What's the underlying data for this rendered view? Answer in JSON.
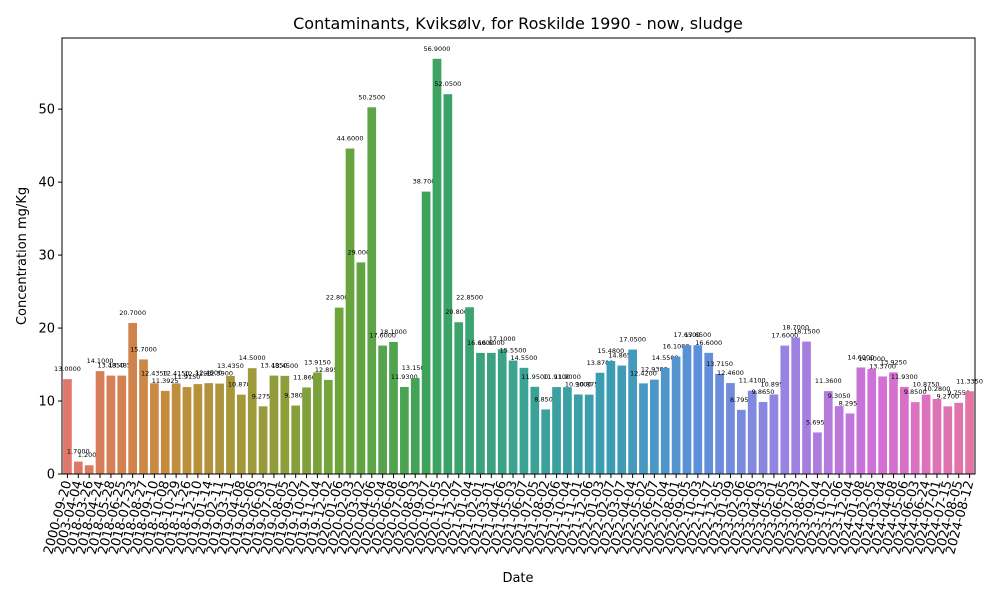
{
  "chart_data": {
    "type": "bar",
    "title": "Contaminants, Kviksølv, for Roskilde 1990 - now, sludge",
    "xlabel": "Date",
    "ylabel": "Concentration mg/Kg",
    "categories": [
      "2000-09-20",
      "2003-04-04",
      "2018-03-26",
      "2018-04-24",
      "2018-05-28",
      "2018-06-25",
      "2018-07-23",
      "2018-08-27",
      "2018-09-10",
      "2018-10-08",
      "2018-10-29",
      "2018-11-26",
      "2018-12-10",
      "2019-01-14",
      "2019-02-11",
      "2019-03-11",
      "2019-04-08",
      "2019-05-06",
      "2019-06-03",
      "2019-07-01",
      "2019-08-05",
      "2019-09-02",
      "2019-10-07",
      "2019-11-04",
      "2019-12-02",
      "2020-01-06",
      "2020-02-03",
      "2020-03-02",
      "2020-04-06",
      "2020-05-04",
      "2020-06-08",
      "2020-07-06",
      "2020-08-03",
      "2020-09-07",
      "2020-10-05",
      "2020-11-02",
      "2020-12-07",
      "2021-01-04",
      "2021-02-01",
      "2021-03-01",
      "2021-04-06",
      "2021-05-03",
      "2021-06-07",
      "2021-07-05",
      "2021-08-02",
      "2021-09-06",
      "2021-10-04",
      "2021-11-01",
      "2021-12-06",
      "2022-01-03",
      "2022-02-07",
      "2022-03-07",
      "2022-04-04",
      "2022-05-02",
      "2022-06-07",
      "2022-07-04",
      "2022-08-01",
      "2022-09-05",
      "2022-10-03",
      "2022-11-07",
      "2022-12-05",
      "2023-01-09",
      "2023-02-06",
      "2023-03-06",
      "2023-04-03",
      "2023-05-01",
      "2023-06-05",
      "2023-07-03",
      "2023-08-07",
      "2023-09-04",
      "2023-10-02",
      "2023-11-06",
      "2023-12-04",
      "2024-01-08",
      "2024-02-05",
      "2024-03-04",
      "2024-04-08",
      "2024-05-06",
      "2024-06-03",
      "2024-06-24",
      "2024-07-01",
      "2024-07-15",
      "2024-08-05",
      "2024-08-12"
    ],
    "values": [
      13.0,
      1.7,
      1.2,
      14.1,
      13.485,
      13.485,
      20.7,
      15.7,
      12.435,
      11.3925,
      12.415,
      11.915,
      12.315,
      12.45,
      12.39,
      13.435,
      10.87,
      14.5,
      9.275,
      13.485,
      13.45,
      9.38,
      11.86,
      13.915,
      12.895,
      22.8,
      44.6,
      29.0,
      50.25,
      17.6,
      18.1,
      11.93,
      13.15,
      38.7,
      56.9,
      52.05,
      20.8,
      22.85,
      16.6,
      16.6,
      17.1,
      15.55,
      14.55,
      11.95,
      8.85,
      11.91,
      11.9,
      10.9,
      10.875,
      13.87,
      15.48,
      14.865,
      17.05,
      12.42,
      12.93,
      14.55,
      16.1,
      17.65,
      17.65,
      16.6,
      13.715,
      12.46,
      8.795,
      11.41,
      9.865,
      10.895,
      17.6,
      18.7,
      18.15,
      5.695,
      11.36,
      9.305,
      8.295,
      14.6,
      14.4,
      13.37,
      13.925,
      11.93,
      9.85,
      10.875,
      10.28,
      9.27,
      9.755,
      11.335
    ],
    "value_labels": [
      "13.0000",
      "1.7000",
      "1.2000",
      "14.1000",
      "13.4850",
      "13.4850",
      "20.7000",
      "15.7000",
      "12.4350",
      "11.3925",
      "12.4150",
      "11.9150",
      "12.3150",
      "12.4500",
      "12.3900",
      "13.4350",
      "10.8700",
      "14.5000",
      "9.2750",
      "13.4850",
      "13.4500",
      "9.3800",
      "11.8600",
      "13.9150",
      "12.8950",
      "22.8000",
      "44.6000",
      "29.0000",
      "50.2500",
      "17.6000",
      "18.1000",
      "11.9300",
      "13.1500",
      "38.7000",
      "56.9000",
      "52.0500",
      "20.8000",
      "22.8500",
      "16.6000",
      "16.6000",
      "17.1000",
      "15.5500",
      "14.5500",
      "11.9500",
      "8.8500",
      "11.9100",
      "11.9000",
      "10.9000",
      "10.8750",
      "13.8700",
      "15.4800",
      "14.8650",
      "17.0500",
      "12.4200",
      "12.9300",
      "14.5500",
      "16.1000",
      "17.6500",
      "17.6500",
      "16.6000",
      "13.7150",
      "12.4600",
      "8.7950",
      "11.4100",
      "9.8650",
      "10.8950",
      "17.6000",
      "18.7000",
      "18.1500",
      "5.6950",
      "11.3600",
      "9.3050",
      "8.2950",
      "14.6000",
      "14.4000",
      "13.3700",
      "13.9250",
      "11.9300",
      "9.8500",
      "10.8750",
      "10.2800",
      "9.2700",
      "9.7550",
      "11.3350"
    ],
    "palette": [
      "#e1766a",
      "#c98a3f",
      "#a1993a",
      "#6fa53b",
      "#3ca35c",
      "#3ba392",
      "#3a9db3",
      "#5c91d9",
      "#9b82e2",
      "#d46fd6",
      "#e374a4"
    ],
    "ylim": [
      0,
      59.75
    ],
    "yticks": [
      0,
      10,
      20,
      30,
      40,
      50
    ],
    "grid": false
  }
}
